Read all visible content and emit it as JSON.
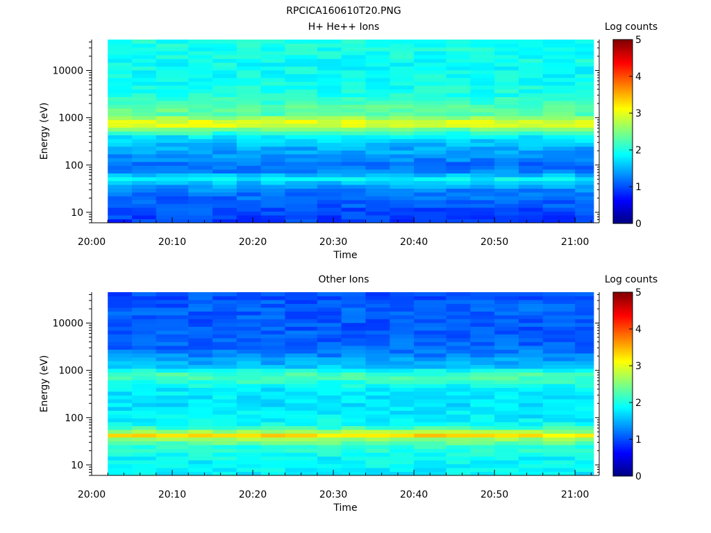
{
  "figure_title": "RPCICA160610T20.PNG",
  "chart_data": [
    {
      "type": "heatmap",
      "title": "H+ He++ Ions",
      "xlabel": "Time",
      "ylabel": "Energy (eV)",
      "y_scale": "log",
      "ylim": [
        6,
        45000
      ],
      "x_range": [
        "20:00",
        "21:03"
      ],
      "x_ticks": [
        "20:00",
        "20:10",
        "20:20",
        "20:30",
        "20:40",
        "20:50",
        "21:00"
      ],
      "y_ticks": [
        "10",
        "100",
        "1000",
        "10000"
      ],
      "colorbar": {
        "label": "Log counts",
        "range": [
          0,
          5
        ],
        "ticks": [
          "0",
          "1",
          "2",
          "3",
          "4",
          "5"
        ]
      },
      "time_bins": [
        "20:02",
        "20:05",
        "20:08",
        "20:12",
        "20:15",
        "20:18",
        "20:21",
        "20:24",
        "20:28",
        "20:31",
        "20:34",
        "20:37",
        "20:40",
        "20:44",
        "20:47",
        "20:50",
        "20:53",
        "20:56",
        "21:00"
      ],
      "energy_profile": {
        "energy_eV": [
          6,
          10,
          15,
          25,
          40,
          50,
          70,
          100,
          150,
          250,
          400,
          600,
          750,
          900,
          1200,
          1600,
          2000,
          3000,
          5000,
          10000,
          20000,
          45000
        ],
        "log_counts": [
          0.9,
          1.0,
          1.05,
          1.2,
          1.5,
          1.9,
          1.3,
          1.15,
          1.35,
          1.5,
          1.8,
          2.5,
          3.2,
          2.8,
          2.3,
          2.35,
          2.2,
          2.0,
          1.95,
          1.9,
          1.95,
          2.0
        ]
      }
    },
    {
      "type": "heatmap",
      "title": "Other Ions",
      "xlabel": "Time",
      "ylabel": "Energy (eV)",
      "y_scale": "log",
      "ylim": [
        6,
        45000
      ],
      "x_range": [
        "20:00",
        "21:03"
      ],
      "x_ticks": [
        "20:00",
        "20:10",
        "20:20",
        "20:30",
        "20:40",
        "20:50",
        "21:00"
      ],
      "y_ticks": [
        "10",
        "100",
        "1000",
        "10000"
      ],
      "colorbar": {
        "label": "Log counts",
        "range": [
          0,
          5
        ],
        "ticks": [
          "0",
          "1",
          "2",
          "3",
          "4",
          "5"
        ]
      },
      "time_bins": [
        "20:02",
        "20:05",
        "20:08",
        "20:12",
        "20:15",
        "20:18",
        "20:21",
        "20:24",
        "20:28",
        "20:31",
        "20:34",
        "20:37",
        "20:40",
        "20:44",
        "20:47",
        "20:50",
        "20:53",
        "20:56",
        "21:00"
      ],
      "energy_profile": {
        "energy_eV": [
          6,
          10,
          15,
          25,
          35,
          42,
          50,
          65,
          100,
          200,
          400,
          600,
          750,
          900,
          1200,
          2000,
          3000,
          5000,
          10000,
          20000,
          45000
        ],
        "log_counts": [
          1.8,
          1.85,
          1.9,
          2.1,
          2.6,
          3.3,
          2.7,
          2.0,
          1.8,
          1.75,
          1.8,
          2.1,
          2.3,
          2.1,
          1.6,
          1.3,
          1.15,
          1.1,
          1.05,
          1.1,
          1.0
        ]
      }
    }
  ]
}
